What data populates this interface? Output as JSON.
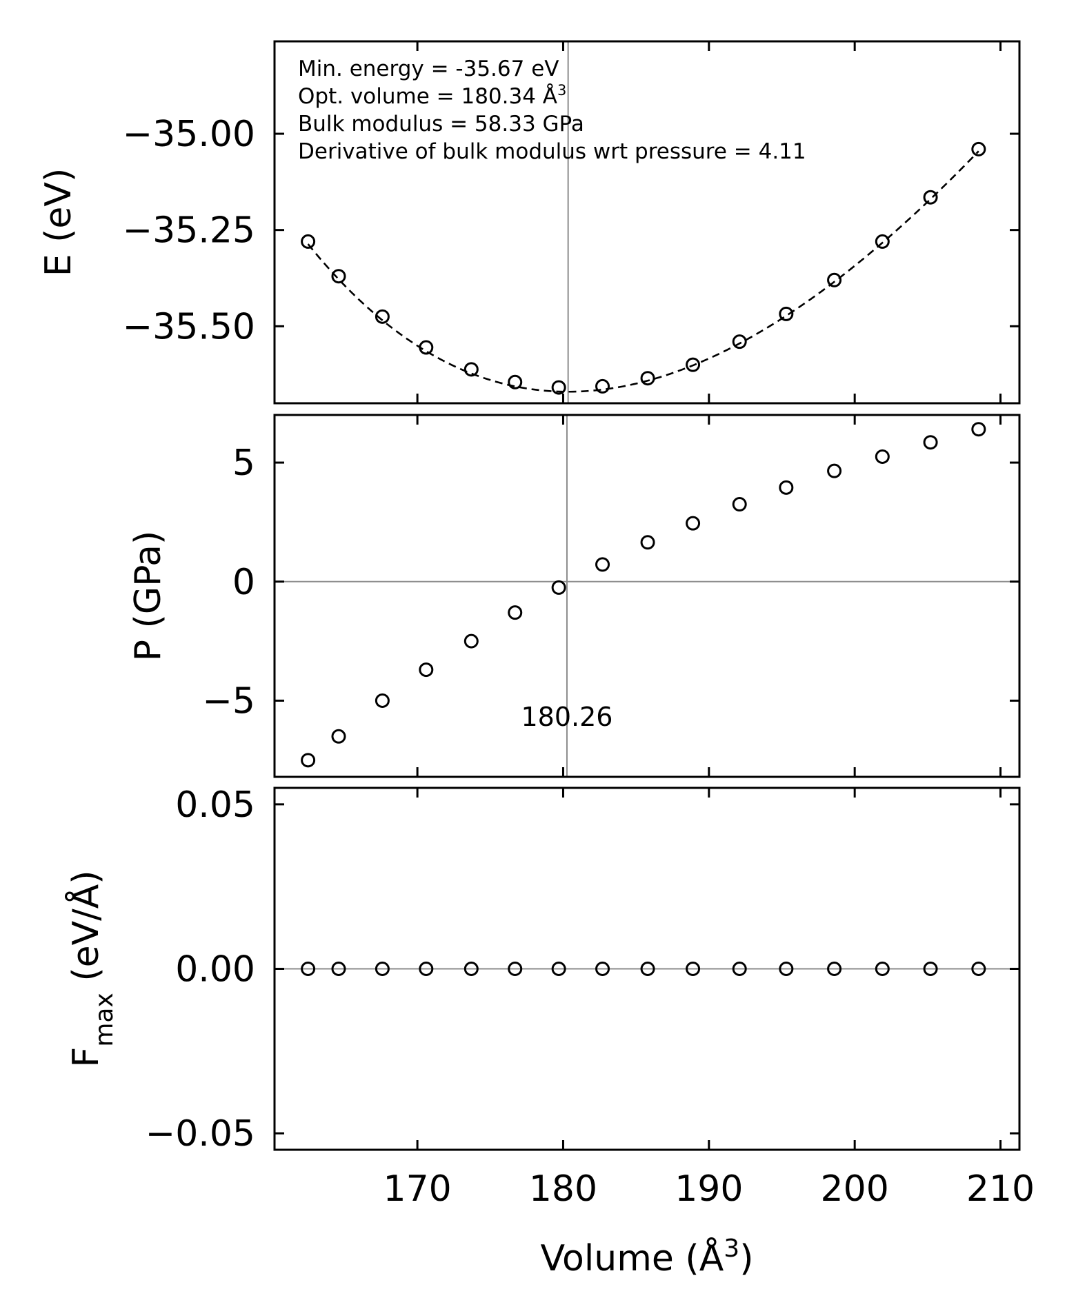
{
  "chart_data": [
    {
      "type": "scatter",
      "panel": "energy",
      "ylabel": "E (eV)",
      "xlim": [
        160.2,
        211.3
      ],
      "ylim": [
        -35.7,
        -34.76
      ],
      "yticks": [
        -35.0,
        -35.25,
        -35.5
      ],
      "ytick_labels": [
        "−35.00",
        "−35.25",
        "−35.50"
      ],
      "vline_x": 180.34,
      "annotations": [
        {
          "text": "Min. energy = -35.67 eV"
        },
        {
          "text": "Opt. volume = 180.34 Å",
          "sup": "3"
        },
        {
          "text": "Bulk modulus = 58.33 GPa"
        },
        {
          "text": "Derivative of bulk modulus wrt pressure = 4.11"
        }
      ],
      "series": [
        {
          "name": "energy points",
          "marker": "open-circle",
          "x": [
            162.5,
            164.6,
            167.6,
            170.6,
            173.7,
            176.7,
            179.7,
            182.7,
            185.8,
            188.9,
            192.1,
            195.3,
            198.6,
            201.9,
            205.2,
            208.5
          ],
          "values": [
            -35.28,
            -35.37,
            -35.475,
            -35.555,
            -35.612,
            -35.645,
            -35.659,
            -35.656,
            -35.635,
            -35.6,
            -35.54,
            -35.468,
            -35.38,
            -35.28,
            -35.165,
            -35.04
          ]
        },
        {
          "name": "EOS fit",
          "style": "dashed-line",
          "fit": {
            "E0": -35.67,
            "V0": 180.34,
            "B0_GPa": 58.33,
            "B0_prime": 4.11
          },
          "x_range": [
            162.5,
            208.5
          ]
        }
      ]
    },
    {
      "type": "scatter",
      "panel": "pressure",
      "ylabel": "P (GPa)",
      "xlim": [
        160.2,
        211.3
      ],
      "ylim": [
        -8.2,
        7.0
      ],
      "yticks": [
        5,
        0,
        -5
      ],
      "ytick_labels": [
        "5",
        "0",
        "−5"
      ],
      "hline_y": 0,
      "vline_x": 180.26,
      "vline_label": "180.26",
      "series": [
        {
          "name": "pressure points",
          "marker": "open-circle",
          "x": [
            162.5,
            164.6,
            167.6,
            170.6,
            173.7,
            176.7,
            179.7,
            182.7,
            185.8,
            188.9,
            192.1,
            195.3,
            198.6,
            201.9,
            205.2,
            208.5
          ],
          "values": [
            -7.5,
            -6.5,
            -5.0,
            -3.7,
            -2.5,
            -1.3,
            -0.25,
            0.72,
            1.65,
            2.45,
            3.25,
            3.95,
            4.65,
            5.25,
            5.85,
            6.4
          ]
        }
      ]
    },
    {
      "type": "scatter",
      "panel": "force",
      "ylabel": "F",
      "ylabel_sub": "max",
      "ylabel_unit": " (eV/Å)",
      "xlabel": "Volume (Å",
      "xlabel_sup": "3",
      "xlabel_close": ")",
      "xlim": [
        160.2,
        211.3
      ],
      "ylim": [
        -0.055,
        0.055
      ],
      "xticks": [
        170,
        180,
        190,
        200,
        210
      ],
      "xtick_labels": [
        "170",
        "180",
        "190",
        "200",
        "210"
      ],
      "yticks": [
        0.05,
        0.0,
        -0.05
      ],
      "ytick_labels": [
        "0.05",
        "0.00",
        "−0.05"
      ],
      "hline_y": 0,
      "series": [
        {
          "name": "max force points",
          "marker": "open-circle",
          "x": [
            162.5,
            164.6,
            167.6,
            170.6,
            173.7,
            176.7,
            179.7,
            182.7,
            185.8,
            188.9,
            192.1,
            195.3,
            198.6,
            201.9,
            205.2,
            208.5
          ],
          "values": [
            0,
            0,
            0,
            0,
            0,
            0,
            0,
            0,
            0,
            0,
            0,
            0,
            0,
            0,
            0,
            0
          ]
        }
      ]
    }
  ]
}
